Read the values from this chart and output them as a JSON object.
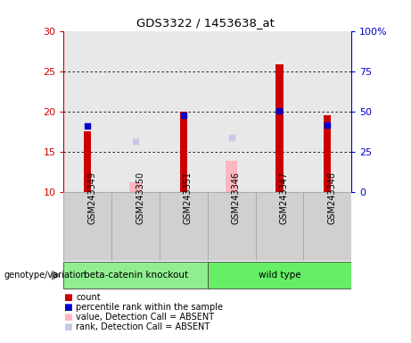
{
  "title": "GDS3322 / 1453638_at",
  "samples": [
    "GSM243349",
    "GSM243350",
    "GSM243351",
    "GSM243346",
    "GSM243347",
    "GSM243348"
  ],
  "red_bars": [
    17.5,
    null,
    20.0,
    null,
    25.8,
    19.5
  ],
  "blue_dots": [
    18.2,
    null,
    19.5,
    null,
    20.1,
    18.3
  ],
  "pink_bars": [
    null,
    11.2,
    null,
    13.9,
    null,
    null
  ],
  "lavender_dots": [
    null,
    16.3,
    null,
    16.8,
    null,
    null
  ],
  "ylim_left": [
    10,
    30
  ],
  "ylim_right": [
    0,
    100
  ],
  "yticks_left": [
    10,
    15,
    20,
    25,
    30
  ],
  "yticks_right": [
    0,
    25,
    50,
    75,
    100
  ],
  "ytick_labels_right": [
    "0",
    "25",
    "50",
    "75",
    "100%"
  ],
  "left_axis_color": "#CC0000",
  "right_axis_color": "#0000CC",
  "red_bar_width": 0.15,
  "pink_bar_width": 0.25,
  "dot_size": 22,
  "group_label": "genotype/variation",
  "group_info": [
    {
      "label": "beta-catenin knockout",
      "start": 0,
      "end": 2,
      "color": "#90EE90"
    },
    {
      "label": "wild type",
      "start": 3,
      "end": 5,
      "color": "#66EE66"
    }
  ],
  "legend_items": [
    {
      "label": "count",
      "color": "#CC0000"
    },
    {
      "label": "percentile rank within the sample",
      "color": "#0000CC"
    },
    {
      "label": "value, Detection Call = ABSENT",
      "color": "#FFB6C1"
    },
    {
      "label": "rank, Detection Call = ABSENT",
      "color": "#C8C8E8"
    }
  ],
  "plot_bg": "#E8E8E8",
  "cell_bg": "#D0D0D0",
  "cell_edge": "#AAAAAA"
}
